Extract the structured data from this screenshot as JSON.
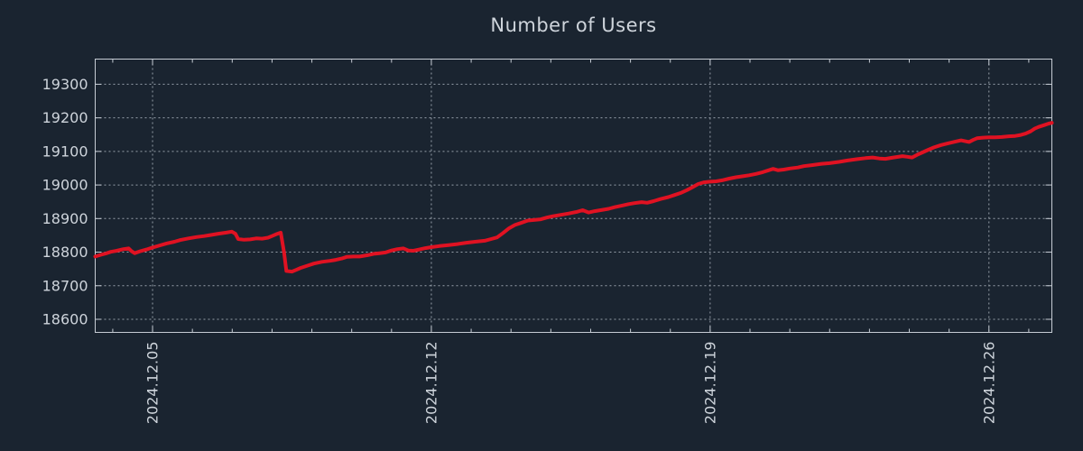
{
  "chart_data": {
    "type": "line",
    "title": "Number of Users",
    "xlabel": "",
    "ylabel": "",
    "x_unit": "day of December 2024 (fractional)",
    "xlim": [
      3.56,
      27.58
    ],
    "ylim": [
      18561,
      19375
    ],
    "grid": true,
    "legend_position": "none",
    "x_ticks": [
      {
        "day": 5,
        "label": "2024.12.05"
      },
      {
        "day": 12,
        "label": "2024.12.12"
      },
      {
        "day": 19,
        "label": "2024.12.19"
      },
      {
        "day": 26,
        "label": "2024.12.26"
      }
    ],
    "x_minor_tick_step_days": 1,
    "y_ticks": [
      18600,
      18700,
      18800,
      18900,
      19000,
      19100,
      19200,
      19300
    ],
    "colors": {
      "background": "#1a2430",
      "text": "#ced4db",
      "axis": "#c6ccd4",
      "grid": "#97a0aa",
      "line": "#e01222"
    },
    "series": [
      {
        "name": "Number of Users",
        "color": "#e01222",
        "points": [
          [
            3.56,
            18787
          ],
          [
            3.7,
            18792
          ],
          [
            3.83,
            18796
          ],
          [
            3.95,
            18801
          ],
          [
            4.1,
            18804
          ],
          [
            4.27,
            18809
          ],
          [
            4.4,
            18811
          ],
          [
            4.47,
            18803
          ],
          [
            4.55,
            18797
          ],
          [
            4.7,
            18803
          ],
          [
            4.85,
            18808
          ],
          [
            4.98,
            18813
          ],
          [
            5.15,
            18819
          ],
          [
            5.35,
            18826
          ],
          [
            5.55,
            18831
          ],
          [
            5.7,
            18836
          ],
          [
            5.9,
            18841
          ],
          [
            6.1,
            18845
          ],
          [
            6.3,
            18848
          ],
          [
            6.45,
            18851
          ],
          [
            6.65,
            18855
          ],
          [
            6.85,
            18858
          ],
          [
            6.99,
            18861
          ],
          [
            7.08,
            18855
          ],
          [
            7.15,
            18839
          ],
          [
            7.3,
            18837
          ],
          [
            7.45,
            18838
          ],
          [
            7.6,
            18841
          ],
          [
            7.75,
            18840
          ],
          [
            7.9,
            18843
          ],
          [
            8.0,
            18848
          ],
          [
            8.1,
            18853
          ],
          [
            8.22,
            18858
          ],
          [
            8.3,
            18800
          ],
          [
            8.36,
            18744
          ],
          [
            8.5,
            18742
          ],
          [
            8.6,
            18747
          ],
          [
            8.72,
            18753
          ],
          [
            8.9,
            18760
          ],
          [
            9.05,
            18766
          ],
          [
            9.25,
            18771
          ],
          [
            9.45,
            18774
          ],
          [
            9.6,
            18777
          ],
          [
            9.75,
            18781
          ],
          [
            9.88,
            18786
          ],
          [
            10.05,
            18787
          ],
          [
            10.2,
            18787
          ],
          [
            10.4,
            18791
          ],
          [
            10.55,
            18795
          ],
          [
            10.7,
            18797
          ],
          [
            10.85,
            18799
          ],
          [
            11.0,
            18805
          ],
          [
            11.15,
            18809
          ],
          [
            11.3,
            18811
          ],
          [
            11.42,
            18805
          ],
          [
            11.55,
            18804
          ],
          [
            11.7,
            18808
          ],
          [
            11.85,
            18812
          ],
          [
            12.0,
            18815
          ],
          [
            12.2,
            18818
          ],
          [
            12.43,
            18821
          ],
          [
            12.65,
            18824
          ],
          [
            12.88,
            18828
          ],
          [
            13.1,
            18831
          ],
          [
            13.34,
            18834
          ],
          [
            13.5,
            18839
          ],
          [
            13.65,
            18844
          ],
          [
            13.8,
            18857
          ],
          [
            13.95,
            18871
          ],
          [
            14.1,
            18881
          ],
          [
            14.25,
            18887
          ],
          [
            14.42,
            18894
          ],
          [
            14.6,
            18896
          ],
          [
            14.75,
            18898
          ],
          [
            14.9,
            18903
          ],
          [
            15.05,
            18907
          ],
          [
            15.25,
            18911
          ],
          [
            15.45,
            18915
          ],
          [
            15.65,
            18920
          ],
          [
            15.8,
            18925
          ],
          [
            15.95,
            18918
          ],
          [
            16.1,
            18922
          ],
          [
            16.3,
            18926
          ],
          [
            16.45,
            18929
          ],
          [
            16.6,
            18934
          ],
          [
            16.8,
            18939
          ],
          [
            16.95,
            18943
          ],
          [
            17.1,
            18946
          ],
          [
            17.28,
            18949
          ],
          [
            17.42,
            18947
          ],
          [
            17.58,
            18952
          ],
          [
            17.75,
            18958
          ],
          [
            17.95,
            18964
          ],
          [
            18.1,
            18970
          ],
          [
            18.28,
            18977
          ],
          [
            18.42,
            18985
          ],
          [
            18.55,
            18993
          ],
          [
            18.7,
            19003
          ],
          [
            18.85,
            19008
          ],
          [
            19.0,
            19010
          ],
          [
            19.15,
            19011
          ],
          [
            19.3,
            19014
          ],
          [
            19.48,
            19019
          ],
          [
            19.65,
            19023
          ],
          [
            19.82,
            19026
          ],
          [
            19.98,
            19029
          ],
          [
            20.15,
            19033
          ],
          [
            20.32,
            19038
          ],
          [
            20.5,
            19045
          ],
          [
            20.58,
            19048
          ],
          [
            20.7,
            19044
          ],
          [
            20.85,
            19046
          ],
          [
            21.0,
            19049
          ],
          [
            21.2,
            19052
          ],
          [
            21.35,
            19056
          ],
          [
            21.55,
            19059
          ],
          [
            21.8,
            19063
          ],
          [
            22.0,
            19065
          ],
          [
            22.25,
            19069
          ],
          [
            22.45,
            19073
          ],
          [
            22.7,
            19077
          ],
          [
            22.9,
            19080
          ],
          [
            23.08,
            19082
          ],
          [
            23.25,
            19079
          ],
          [
            23.4,
            19078
          ],
          [
            23.6,
            19082
          ],
          [
            23.83,
            19086
          ],
          [
            23.95,
            19084
          ],
          [
            24.07,
            19082
          ],
          [
            24.2,
            19090
          ],
          [
            24.33,
            19097
          ],
          [
            24.48,
            19105
          ],
          [
            24.62,
            19112
          ],
          [
            24.8,
            19119
          ],
          [
            24.97,
            19124
          ],
          [
            25.15,
            19129
          ],
          [
            25.3,
            19133
          ],
          [
            25.42,
            19130
          ],
          [
            25.5,
            19128
          ],
          [
            25.6,
            19134
          ],
          [
            25.7,
            19139
          ],
          [
            25.85,
            19141
          ],
          [
            26.0,
            19142
          ],
          [
            26.15,
            19142
          ],
          [
            26.32,
            19143
          ],
          [
            26.5,
            19145
          ],
          [
            26.66,
            19146
          ],
          [
            26.8,
            19149
          ],
          [
            26.92,
            19153
          ],
          [
            27.05,
            19160
          ],
          [
            27.15,
            19168
          ],
          [
            27.25,
            19173
          ],
          [
            27.38,
            19178
          ],
          [
            27.5,
            19183
          ],
          [
            27.58,
            19185
          ]
        ]
      }
    ]
  }
}
